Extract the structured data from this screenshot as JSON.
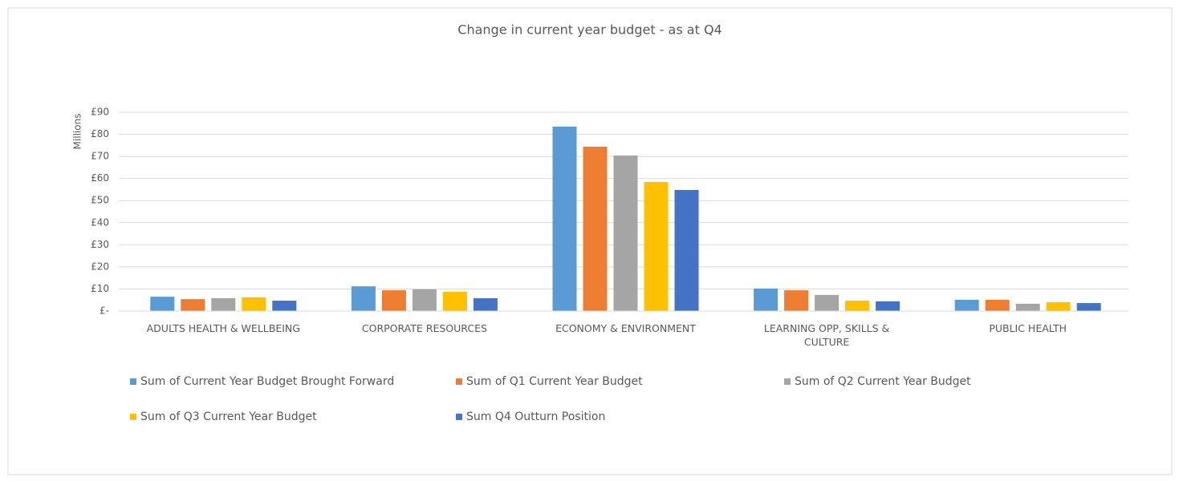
{
  "chart_data": {
    "type": "bar",
    "title": "Change in current year budget - as at Q4",
    "y_axis_label": "Millions",
    "categories": [
      "ADULTS HEALTH & WELLBEING",
      "CORPORATE RESOURCES",
      "ECONOMY & ENVIRONMENT",
      "LEARNING OPP, SKILLS & CULTURE",
      "PUBLIC HEALTH"
    ],
    "series": [
      {
        "name": "Sum of Current Year Budget Brought Forward",
        "color": "#5b9bd5",
        "values": [
          6.5,
          11.2,
          83.5,
          10.2,
          5.1
        ]
      },
      {
        "name": "Sum of Q1 Current Year Budget",
        "color": "#ed7d31",
        "values": [
          5.4,
          9.4,
          74.4,
          9.4,
          5.1
        ]
      },
      {
        "name": "Sum of Q2 Current Year Budget",
        "color": "#a5a5a5",
        "values": [
          5.8,
          9.8,
          70.4,
          7.3,
          3.3
        ]
      },
      {
        "name": "Sum of Q3 Current Year Budget",
        "color": "#ffc000",
        "values": [
          6.2,
          8.7,
          58.4,
          4.7,
          4.0
        ]
      },
      {
        "name": "Sum Q4 Outturn Position",
        "color": "#4472c4",
        "values": [
          4.7,
          5.8,
          54.8,
          4.4,
          3.6
        ]
      }
    ],
    "ylim": [
      0,
      90
    ],
    "yticks": [
      {
        "value": 0,
        "label": "£-"
      },
      {
        "value": 10,
        "label": "£10"
      },
      {
        "value": 20,
        "label": "£20"
      },
      {
        "value": 30,
        "label": "£30"
      },
      {
        "value": 40,
        "label": "£40"
      },
      {
        "value": 50,
        "label": "£50"
      },
      {
        "value": 60,
        "label": "£60"
      },
      {
        "value": 70,
        "label": "£70"
      },
      {
        "value": 80,
        "label": "£80"
      },
      {
        "value": 90,
        "label": "£90"
      }
    ],
    "grid": true,
    "legend_position": "bottom"
  }
}
